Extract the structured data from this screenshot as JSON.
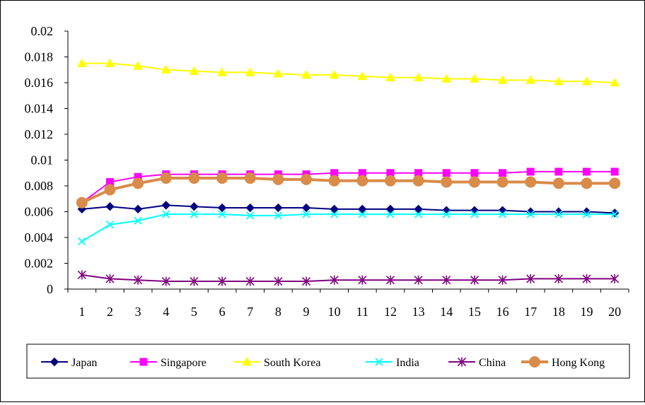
{
  "chart_data": {
    "type": "line",
    "title": "",
    "xlabel": "",
    "ylabel": "",
    "categories": [
      "1",
      "2",
      "3",
      "4",
      "5",
      "6",
      "7",
      "8",
      "9",
      "10",
      "11",
      "12",
      "13",
      "14",
      "15",
      "16",
      "17",
      "18",
      "19",
      "20"
    ],
    "ylim": [
      0,
      0.02
    ],
    "yticks": [
      {
        "value": 0,
        "label": "0"
      },
      {
        "value": 0.002,
        "label": "0.002"
      },
      {
        "value": 0.004,
        "label": "0.004"
      },
      {
        "value": 0.006,
        "label": "0.006"
      },
      {
        "value": 0.008,
        "label": "0.008"
      },
      {
        "value": 0.01,
        "label": "0.01"
      },
      {
        "value": 0.012,
        "label": "0.012"
      },
      {
        "value": 0.014,
        "label": "0.014"
      },
      {
        "value": 0.016,
        "label": "0.016"
      },
      {
        "value": 0.018,
        "label": "0.018"
      },
      {
        "value": 0.02,
        "label": "0.02"
      }
    ],
    "grid": false,
    "legend_position": "bottom",
    "series": [
      {
        "name": "Japan",
        "color": "#000080",
        "marker": "diamond",
        "values": [
          0.0062,
          0.0064,
          0.0062,
          0.0065,
          0.0064,
          0.0063,
          0.0063,
          0.0063,
          0.0063,
          0.0062,
          0.0062,
          0.0062,
          0.0062,
          0.0061,
          0.0061,
          0.0061,
          0.006,
          0.006,
          0.006,
          0.0059
        ]
      },
      {
        "name": "Singapore",
        "color": "#FF00FF",
        "marker": "square",
        "values": [
          0.0067,
          0.0083,
          0.0087,
          0.0089,
          0.0089,
          0.0089,
          0.0089,
          0.0089,
          0.0089,
          0.009,
          0.009,
          0.009,
          0.009,
          0.009,
          0.009,
          0.009,
          0.0091,
          0.0091,
          0.0091,
          0.0091
        ]
      },
      {
        "name": "South Korea",
        "color": "#FFFF00",
        "marker": "triangle",
        "values": [
          0.0175,
          0.0175,
          0.0173,
          0.017,
          0.0169,
          0.0168,
          0.0168,
          0.0167,
          0.0166,
          0.0166,
          0.0165,
          0.0164,
          0.0164,
          0.0163,
          0.0163,
          0.0162,
          0.0162,
          0.0161,
          0.0161,
          0.016
        ]
      },
      {
        "name": "India",
        "color": "#00FFFF",
        "marker": "x",
        "values": [
          0.0037,
          0.005,
          0.0053,
          0.0058,
          0.0058,
          0.0058,
          0.0057,
          0.0057,
          0.0058,
          0.0058,
          0.0058,
          0.0058,
          0.0058,
          0.0058,
          0.0058,
          0.0058,
          0.0058,
          0.0058,
          0.0058,
          0.0058
        ]
      },
      {
        "name": "China",
        "color": "#800080",
        "marker": "asterisk",
        "values": [
          0.0011,
          0.0008,
          0.0007,
          0.0006,
          0.0006,
          0.0006,
          0.0006,
          0.0006,
          0.0006,
          0.0007,
          0.0007,
          0.0007,
          0.0007,
          0.0007,
          0.0007,
          0.0007,
          0.0008,
          0.0008,
          0.0008,
          0.0008
        ]
      },
      {
        "name": "Hong Kong",
        "color": "#D98C4A",
        "marker": "circle",
        "values": [
          0.0067,
          0.0077,
          0.0082,
          0.0086,
          0.0086,
          0.0086,
          0.0086,
          0.0085,
          0.0085,
          0.0084,
          0.0084,
          0.0084,
          0.0084,
          0.0083,
          0.0083,
          0.0083,
          0.0083,
          0.0082,
          0.0082,
          0.0082
        ]
      }
    ]
  }
}
